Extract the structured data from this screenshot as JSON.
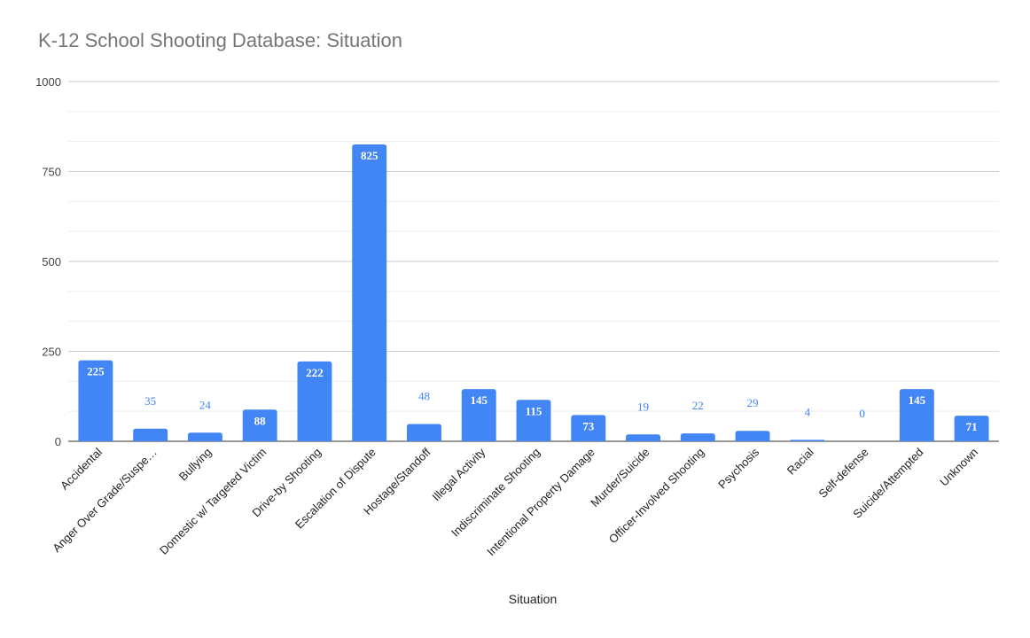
{
  "chart_data": {
    "type": "bar",
    "title": "K-12 School Shooting Database: Situation",
    "xlabel": "Situation",
    "ylabel": "",
    "ylim": [
      0,
      1000
    ],
    "yticks": [
      0,
      250,
      500,
      750,
      1000
    ],
    "grid": true,
    "legend": "none",
    "bar_color": "#4285f4",
    "categories": [
      "Accidental",
      "Anger Over Grade/Suspe…",
      "Bullying",
      "Domestic w/ Targeted Victim",
      "Drive-by Shooting",
      "Escalation of Dispute",
      "Hostage/Standoff",
      "Illegal Activity",
      "Indiscriminate Shooting",
      "Intentional Property Damage",
      "Murder/Suicide",
      "Officer-Involved Shooting",
      "Psychosis",
      "Racial",
      "Self-defense",
      "Suicide/Attempted",
      "Unknown"
    ],
    "values": [
      225,
      35,
      24,
      88,
      222,
      825,
      48,
      145,
      115,
      73,
      19,
      22,
      29,
      4,
      0,
      145,
      71
    ]
  }
}
